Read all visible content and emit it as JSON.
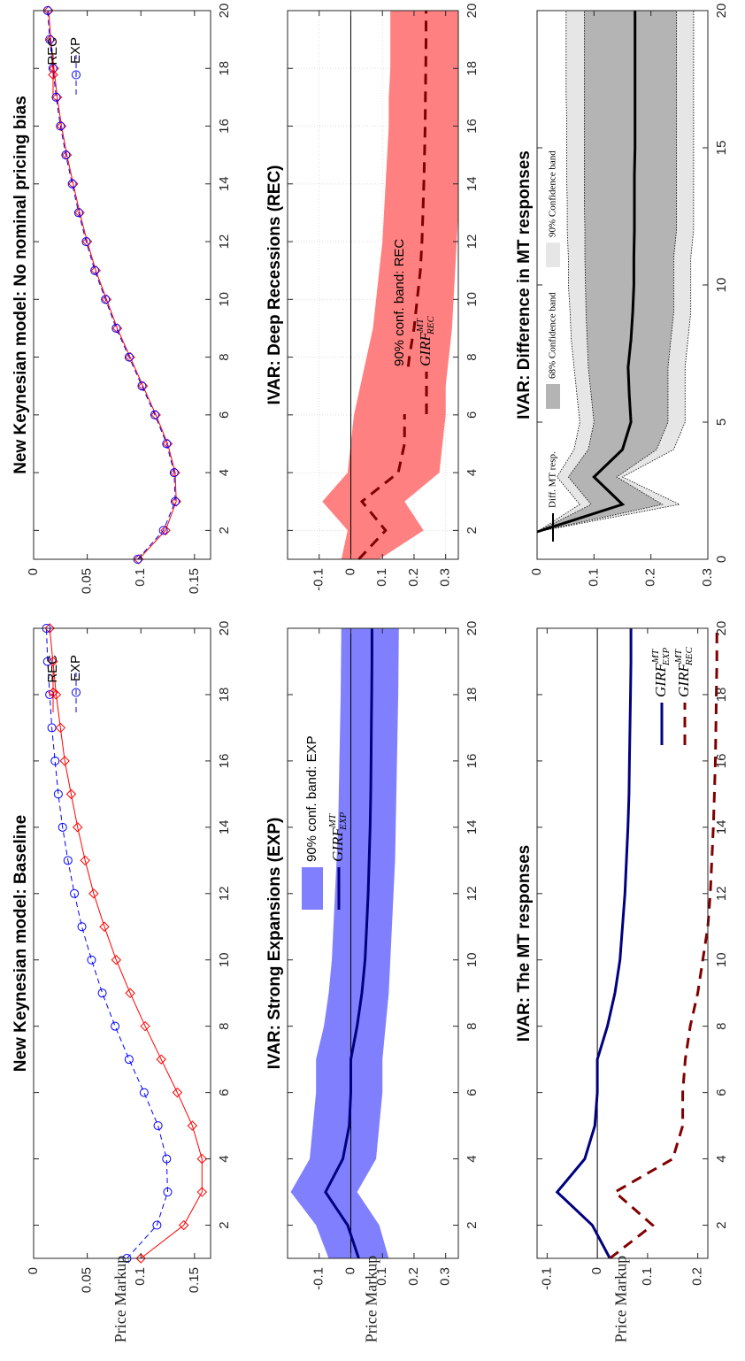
{
  "chart_data": [
    {
      "id": "nk-baseline",
      "type": "line",
      "title": "New Keynesian model: Baseline",
      "xlabel": "",
      "ylabel": "Price Markup",
      "xlim": [
        1,
        20
      ],
      "ylim": [
        0,
        0.165
      ],
      "xticks": [
        2,
        4,
        6,
        8,
        10,
        12,
        14,
        16,
        18,
        20
      ],
      "yticks": [
        0,
        0.05,
        0.1,
        0.15
      ],
      "ytick_labels": [
        "0",
        "0.05",
        "0.1",
        "0.15"
      ],
      "legend": "top-right",
      "grid": false,
      "x": [
        1,
        2,
        3,
        4,
        5,
        6,
        7,
        8,
        9,
        10,
        11,
        12,
        13,
        14,
        15,
        16,
        17,
        18,
        19,
        20
      ],
      "series": [
        {
          "name": "REC",
          "color": "#ff0000",
          "marker": "diamond",
          "dash": "solid",
          "values": [
            0.1,
            0.14,
            0.157,
            0.157,
            0.148,
            0.134,
            0.119,
            0.104,
            0.09,
            0.077,
            0.066,
            0.056,
            0.048,
            0.041,
            0.035,
            0.029,
            0.025,
            0.021,
            0.018,
            0.015
          ]
        },
        {
          "name": "EXP",
          "color": "#0000ff",
          "marker": "circle",
          "dash": "dashed",
          "values": [
            0.087,
            0.115,
            0.125,
            0.124,
            0.116,
            0.103,
            0.089,
            0.076,
            0.064,
            0.054,
            0.045,
            0.038,
            0.032,
            0.027,
            0.023,
            0.02,
            0.017,
            0.015,
            0.013,
            0.012
          ]
        }
      ]
    },
    {
      "id": "nk-no-bias",
      "type": "line",
      "title": "New Keynesian model: No nominal pricing bias",
      "xlabel": "",
      "ylabel": "",
      "xlim": [
        1,
        20
      ],
      "ylim": [
        0,
        0.165
      ],
      "xticks": [
        2,
        4,
        6,
        8,
        10,
        12,
        14,
        16,
        18,
        20
      ],
      "yticks": [
        0,
        0.05,
        0.1,
        0.15
      ],
      "ytick_labels": [
        "0",
        "0.05",
        "0.1",
        "0.15"
      ],
      "legend": "top-right",
      "grid": false,
      "x": [
        1,
        2,
        3,
        4,
        5,
        6,
        7,
        8,
        9,
        10,
        11,
        12,
        13,
        14,
        15,
        16,
        17,
        18,
        19,
        20
      ],
      "series": [
        {
          "name": "REC",
          "color": "#ff0000",
          "marker": "diamond",
          "dash": "solid",
          "values": [
            0.098,
            0.123,
            0.133,
            0.132,
            0.125,
            0.114,
            0.102,
            0.09,
            0.078,
            0.068,
            0.058,
            0.05,
            0.043,
            0.037,
            0.031,
            0.026,
            0.022,
            0.019,
            0.016,
            0.014
          ]
        },
        {
          "name": "EXP",
          "color": "#0000ff",
          "marker": "circle",
          "dash": "dashed",
          "values": [
            0.097,
            0.121,
            0.132,
            0.131,
            0.124,
            0.113,
            0.101,
            0.089,
            0.077,
            0.067,
            0.057,
            0.049,
            0.042,
            0.036,
            0.03,
            0.025,
            0.021,
            0.018,
            0.015,
            0.013
          ]
        }
      ]
    },
    {
      "id": "ivar-exp",
      "type": "area",
      "title": "IVAR: Strong Expansions (EXP)",
      "xlabel": "",
      "ylabel": "Price Markup",
      "xlim": [
        1,
        20
      ],
      "ylim": [
        -0.2,
        0.34
      ],
      "xticks": [
        2,
        4,
        6,
        8,
        10,
        12,
        14,
        16,
        18,
        20
      ],
      "yticks": [
        -0.1,
        0,
        0.1,
        0.2,
        0.3
      ],
      "ytick_labels": [
        "-0.1",
        "0",
        "0.1",
        "0.2",
        "0.3"
      ],
      "zero_line": true,
      "legend": "top-left",
      "grid": false,
      "x": [
        1,
        2,
        3,
        4,
        5,
        6,
        7,
        8,
        9,
        10,
        11,
        12,
        13,
        14,
        15,
        16,
        17,
        18,
        19,
        20
      ],
      "band": {
        "name": "90% conf. band: EXP",
        "color": "#8080ff",
        "upper": [
          0.12,
          0.09,
          0.02,
          0.08,
          0.09,
          0.1,
          0.1,
          0.11,
          0.12,
          0.125,
          0.13,
          0.135,
          0.14,
          0.142,
          0.144,
          0.146,
          0.148,
          0.15,
          0.151,
          0.152
        ],
        "lower": [
          -0.07,
          -0.11,
          -0.19,
          -0.13,
          -0.12,
          -0.11,
          -0.11,
          -0.085,
          -0.07,
          -0.06,
          -0.055,
          -0.05,
          -0.045,
          -0.04,
          -0.038,
          -0.036,
          -0.034,
          -0.032,
          -0.031,
          -0.03
        ]
      },
      "series": [
        {
          "name": "GIRF",
          "sub": "EXP",
          "sup": "MT",
          "color": "#000080",
          "dash": "solid",
          "values": [
            0.025,
            -0.01,
            -0.08,
            -0.025,
            -0.005,
            0.0,
            0.0,
            0.02,
            0.035,
            0.045,
            0.05,
            0.055,
            0.058,
            0.061,
            0.063,
            0.064,
            0.065,
            0.066,
            0.067,
            0.067
          ]
        }
      ]
    },
    {
      "id": "ivar-rec",
      "type": "area",
      "title": "IVAR: Deep Recessions (REC)",
      "xlabel": "",
      "ylabel": "",
      "xlim": [
        1,
        20
      ],
      "ylim": [
        -0.2,
        0.34
      ],
      "xticks": [
        2,
        4,
        6,
        8,
        10,
        12,
        14,
        16,
        18,
        20
      ],
      "yticks": [
        -0.1,
        0,
        0.1,
        0.2,
        0.3
      ],
      "ytick_labels": [
        "-0.1",
        "0",
        "0.1",
        "0.2",
        "0.3"
      ],
      "zero_line": true,
      "legend": "bottom-right",
      "grid": true,
      "x": [
        1,
        2,
        3,
        4,
        5,
        6,
        7,
        8,
        9,
        10,
        11,
        12,
        13,
        14,
        15,
        16,
        17,
        18,
        19,
        20
      ],
      "band": {
        "name": "90% conf. band: REC",
        "color": "#ff8080",
        "upper": [
          0.09,
          0.23,
          0.17,
          0.28,
          0.29,
          0.3,
          0.3,
          0.31,
          0.32,
          0.325,
          0.33,
          0.335,
          0.34,
          0.34,
          0.34,
          0.34,
          0.34,
          0.34,
          0.34,
          0.34
        ],
        "lower": [
          -0.03,
          -0.01,
          -0.09,
          -0.01,
          0.0,
          0.01,
          0.03,
          0.05,
          0.07,
          0.08,
          0.09,
          0.1,
          0.105,
          0.11,
          0.115,
          0.12,
          0.12,
          0.125,
          0.125,
          0.125
        ]
      },
      "series": [
        {
          "name": "GIRF",
          "sub": "REC",
          "sup": "MT",
          "color": "#800000",
          "dash": "dashed",
          "values": [
            0.025,
            0.11,
            0.035,
            0.15,
            0.17,
            0.17,
            0.175,
            0.185,
            0.2,
            0.21,
            0.22,
            0.225,
            0.228,
            0.231,
            0.233,
            0.235,
            0.236,
            0.237,
            0.238,
            0.238
          ]
        }
      ]
    },
    {
      "id": "ivar-mt",
      "type": "line",
      "title": "IVAR: The MT responses",
      "xlabel": "",
      "ylabel": "Price Markup",
      "xlim": [
        1,
        20
      ],
      "ylim": [
        -0.12,
        0.22
      ],
      "xticks": [
        2,
        4,
        6,
        8,
        10,
        12,
        14,
        16,
        18,
        20
      ],
      "yticks": [
        -0.1,
        0,
        0.1,
        0.2
      ],
      "ytick_labels": [
        "-0.1",
        "0",
        "0.1",
        "0.2"
      ],
      "zero_line": true,
      "legend": "bottom-right",
      "grid": false,
      "x": [
        1,
        2,
        3,
        4,
        5,
        6,
        7,
        8,
        9,
        10,
        11,
        12,
        13,
        14,
        15,
        16,
        17,
        18,
        19,
        20
      ],
      "series": [
        {
          "name": "GIRF",
          "sub": "EXP",
          "sup": "MT",
          "color": "#000080",
          "dash": "solid",
          "values": [
            0.025,
            -0.01,
            -0.08,
            -0.025,
            -0.005,
            0.0,
            0.0,
            0.02,
            0.035,
            0.045,
            0.05,
            0.055,
            0.058,
            0.061,
            0.063,
            0.064,
            0.065,
            0.066,
            0.067,
            0.067
          ]
        },
        {
          "name": "GIRF",
          "sub": "REC",
          "sup": "MT",
          "color": "#800000",
          "dash": "dashed",
          "values": [
            0.025,
            0.11,
            0.035,
            0.15,
            0.17,
            0.17,
            0.175,
            0.185,
            0.2,
            0.21,
            0.22,
            0.225,
            0.228,
            0.231,
            0.233,
            0.235,
            0.236,
            0.237,
            0.238,
            0.238
          ]
        }
      ]
    },
    {
      "id": "ivar-diff",
      "type": "area",
      "title": "IVAR: Difference in MT responses",
      "xlabel": "",
      "ylabel": "",
      "xlim": [
        0,
        20
      ],
      "ylim": [
        0,
        0.3
      ],
      "xticks": [
        0,
        5,
        10,
        15,
        20
      ],
      "yticks": [
        0,
        0.1,
        0.2,
        0.3
      ],
      "ytick_labels": [
        "0",
        "0.1",
        "0.2",
        "0.3"
      ],
      "legend": "top",
      "grid": false,
      "x": [
        1,
        2,
        3,
        4,
        5,
        6,
        7,
        8,
        9,
        10,
        11,
        12,
        13,
        14,
        15,
        16,
        17,
        18,
        19,
        20
      ],
      "bands": [
        {
          "name": "90% Confidence band",
          "color": "#e6e6e6",
          "upper": [
            0.0,
            0.25,
            0.15,
            0.24,
            0.26,
            0.26,
            0.26,
            0.265,
            0.27,
            0.27,
            0.27,
            0.275,
            0.275,
            0.275,
            0.275,
            0.275,
            0.275,
            0.275,
            0.275,
            0.275
          ],
          "lower": [
            0.0,
            0.075,
            0.035,
            0.065,
            0.075,
            0.07,
            0.065,
            0.06,
            0.058,
            0.055,
            0.055,
            0.053,
            0.053,
            0.052,
            0.052,
            0.052,
            0.051,
            0.051,
            0.051,
            0.051
          ]
        },
        {
          "name": "68% Confidence band",
          "color": "#b4b4b4",
          "upper": [
            0.0,
            0.22,
            0.14,
            0.21,
            0.23,
            0.23,
            0.23,
            0.235,
            0.24,
            0.24,
            0.24,
            0.245,
            0.245,
            0.245,
            0.245,
            0.245,
            0.245,
            0.245,
            0.245,
            0.245
          ],
          "lower": [
            0.0,
            0.095,
            0.055,
            0.09,
            0.1,
            0.095,
            0.09,
            0.088,
            0.086,
            0.085,
            0.084,
            0.084,
            0.083,
            0.083,
            0.083,
            0.083,
            0.083,
            0.083,
            0.083,
            0.083
          ]
        }
      ],
      "series": [
        {
          "name": "Diff. MT resp.",
          "color": "#000000",
          "dash": "solid",
          "values": [
            0.0,
            0.15,
            0.1,
            0.15,
            0.165,
            0.162,
            0.16,
            0.165,
            0.168,
            0.17,
            0.17,
            0.171,
            0.171,
            0.171,
            0.172,
            0.172,
            0.172,
            0.172,
            0.172,
            0.172
          ]
        }
      ]
    }
  ]
}
